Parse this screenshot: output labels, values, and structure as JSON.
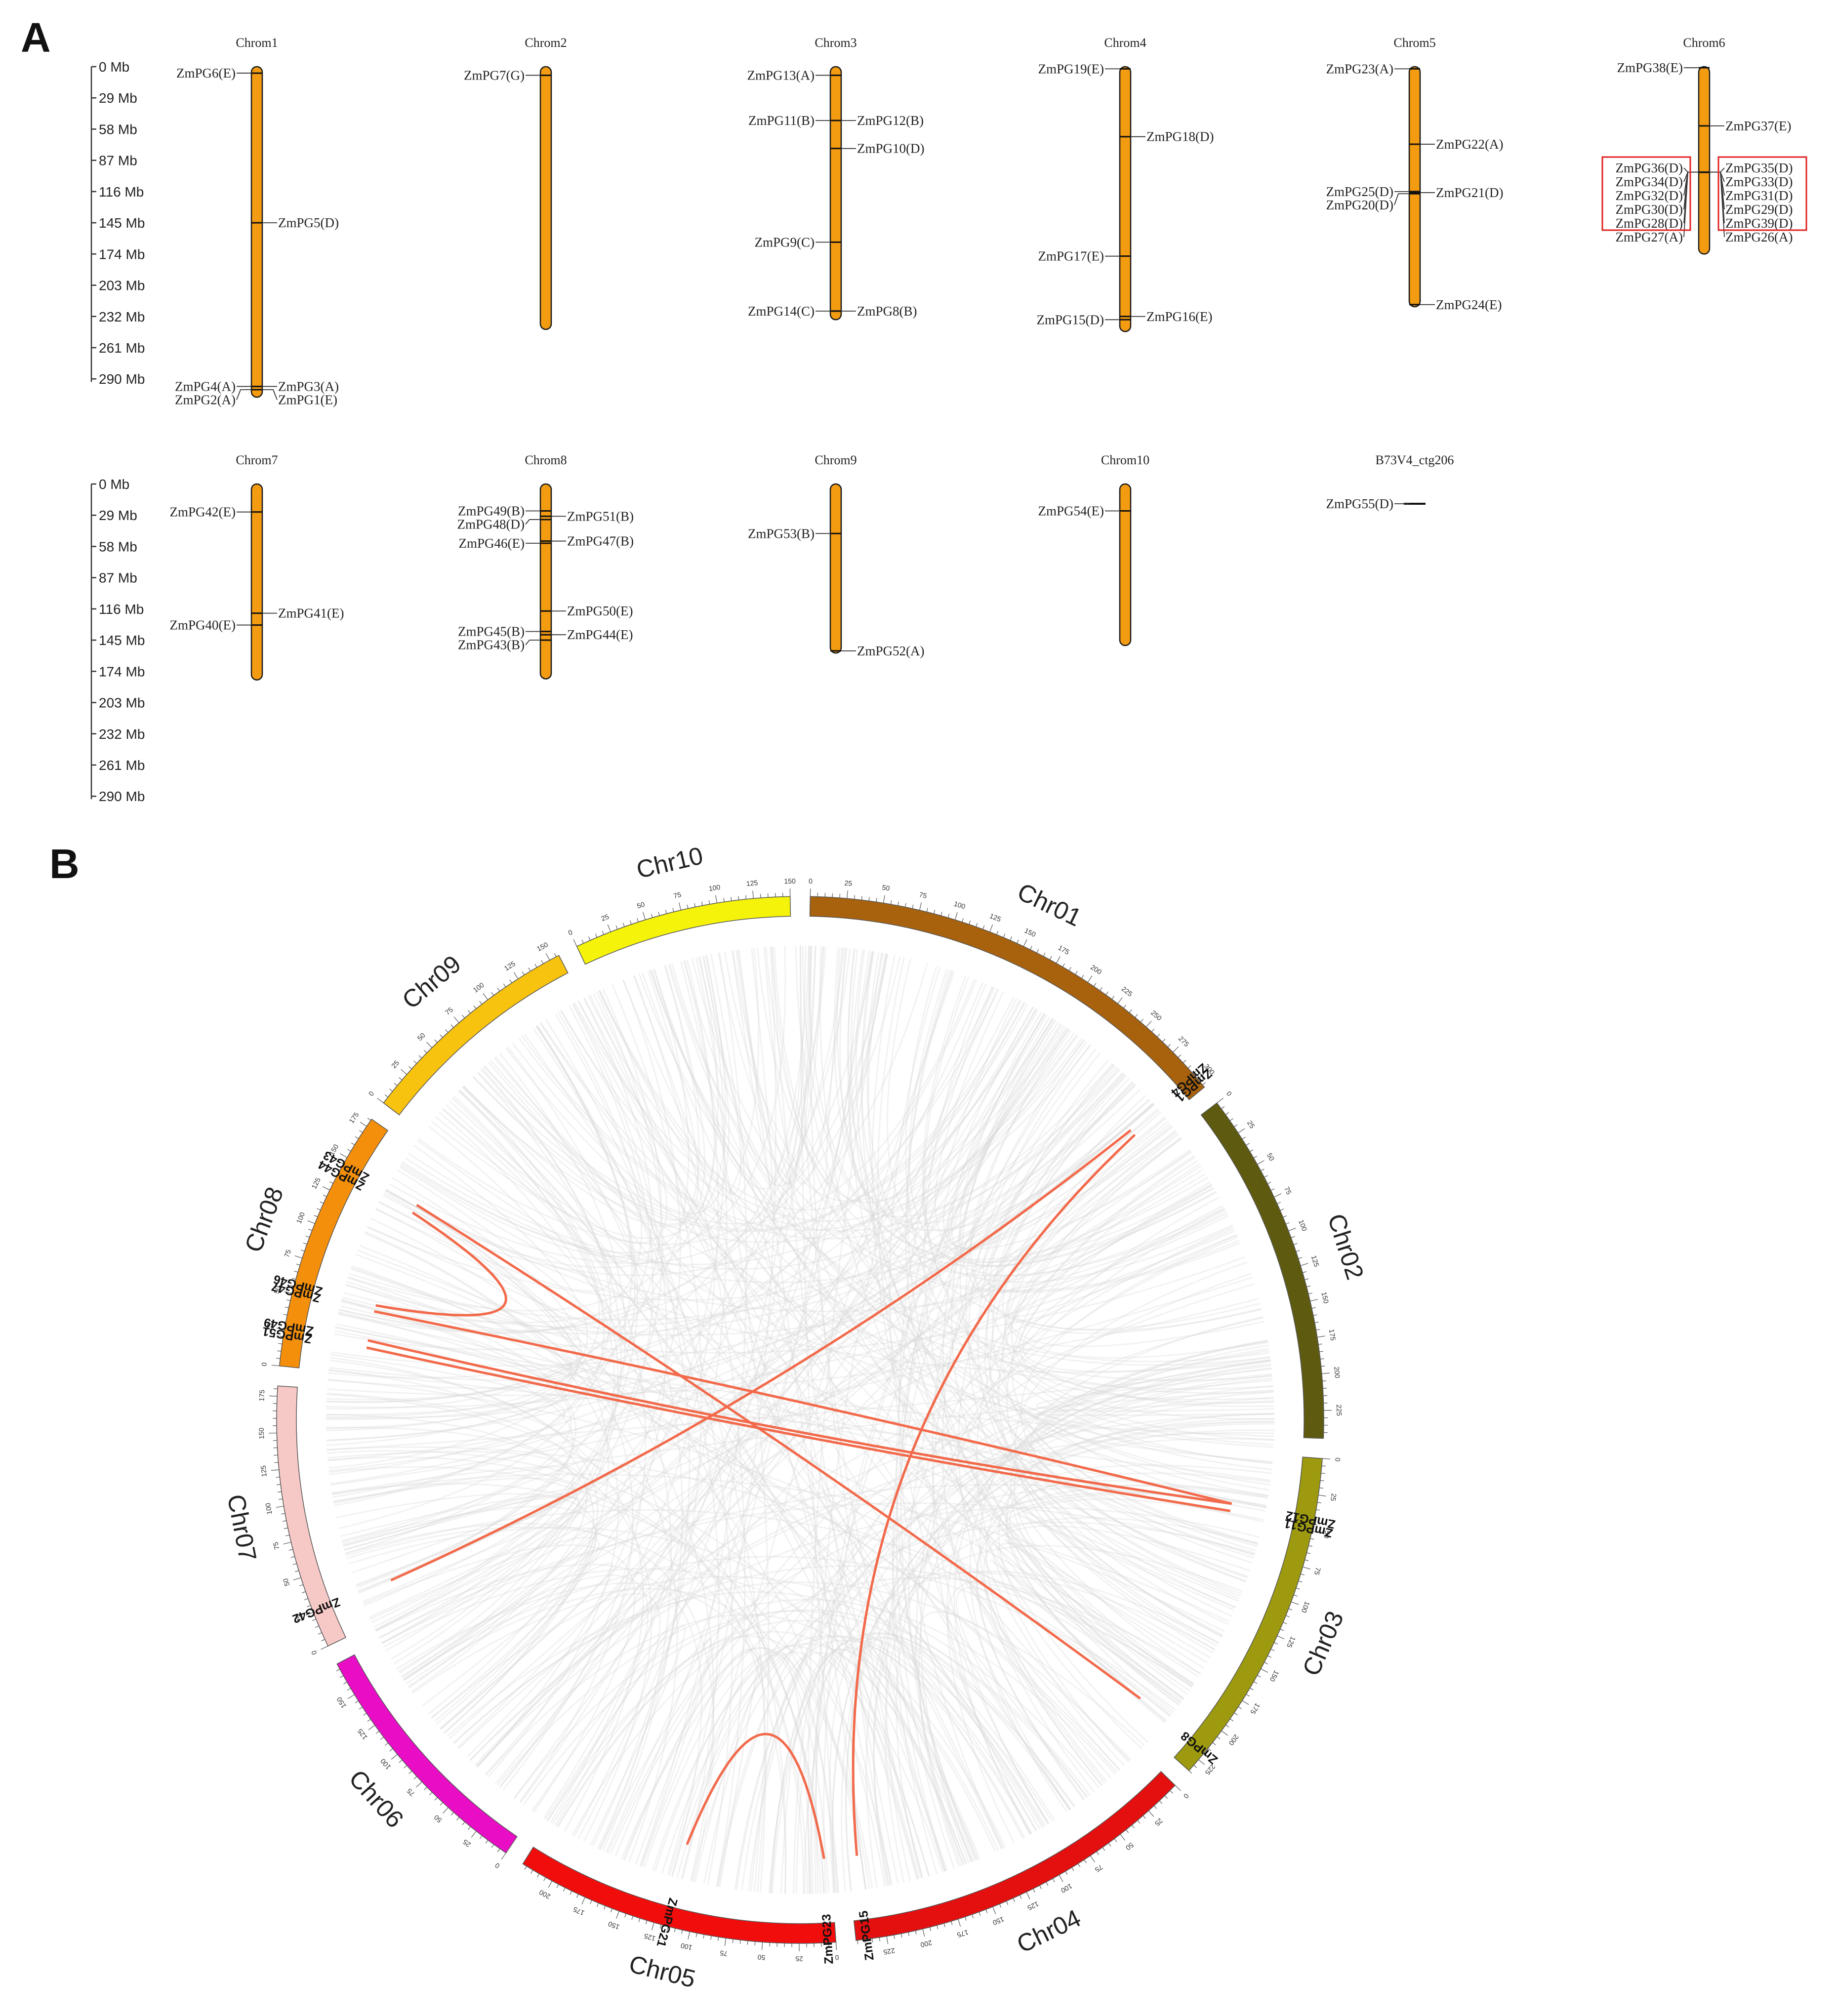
{
  "panelA": {
    "letter": "A",
    "scale_row1": [
      "0 Mb",
      "29 Mb",
      "58 Mb",
      "87 Mb",
      "116 Mb",
      "145 Mb",
      "174 Mb",
      "203 Mb",
      "232 Mb",
      "261 Mb",
      "290 Mb"
    ],
    "scale_row2": [
      "0 Mb",
      "29 Mb",
      "58 Mb",
      "87 Mb",
      "116 Mb",
      "145 Mb",
      "174 Mb",
      "203 Mb",
      "232 Mb",
      "261 Mb",
      "290 Mb"
    ],
    "chromosomes": [
      {
        "name": "Chrom1",
        "length": 307,
        "genes": [
          {
            "label": "ZmPG6(E)",
            "pos": 6,
            "side": "L"
          },
          {
            "label": "ZmPG5(D)",
            "pos": 145,
            "side": "R"
          },
          {
            "label": "ZmPG4(A)",
            "pos": 297,
            "side": "L"
          },
          {
            "label": "ZmPG2(A)",
            "pos": 300,
            "side": "L"
          },
          {
            "label": "ZmPG3(A)",
            "pos": 297,
            "side": "R"
          },
          {
            "label": "ZmPG1(E)",
            "pos": 300,
            "side": "R"
          }
        ]
      },
      {
        "name": "Chrom2",
        "length": 244,
        "genes": [
          {
            "label": "ZmPG7(G)",
            "pos": 8,
            "side": "L"
          }
        ]
      },
      {
        "name": "Chrom3",
        "length": 235,
        "genes": [
          {
            "label": "ZmPG13(A)",
            "pos": 8,
            "side": "L"
          },
          {
            "label": "ZmPG11(B)",
            "pos": 50,
            "side": "L"
          },
          {
            "label": "ZmPG12(B)",
            "pos": 50,
            "side": "R"
          },
          {
            "label": "ZmPG10(D)",
            "pos": 76,
            "side": "R"
          },
          {
            "label": "ZmPG9(C)",
            "pos": 163,
            "side": "L"
          },
          {
            "label": "ZmPG14(C)",
            "pos": 227,
            "side": "L"
          },
          {
            "label": "ZmPG8(B)",
            "pos": 227,
            "side": "R"
          }
        ]
      },
      {
        "name": "Chrom4",
        "length": 246,
        "genes": [
          {
            "label": "ZmPG19(E)",
            "pos": 2,
            "side": "L"
          },
          {
            "label": "ZmPG18(D)",
            "pos": 65,
            "side": "R"
          },
          {
            "label": "ZmPG17(E)",
            "pos": 176,
            "side": "L"
          },
          {
            "label": "ZmPG16(E)",
            "pos": 232,
            "side": "R"
          },
          {
            "label": "ZmPG15(D)",
            "pos": 235,
            "side": "L"
          }
        ]
      },
      {
        "name": "Chrom5",
        "length": 223,
        "genes": [
          {
            "label": "ZmPG23(A)",
            "pos": 2,
            "side": "L"
          },
          {
            "label": "ZmPG22(A)",
            "pos": 72,
            "side": "R"
          },
          {
            "label": "ZmPG25(D)",
            "pos": 116,
            "side": "L"
          },
          {
            "label": "ZmPG20(D)",
            "pos": 118,
            "side": "L"
          },
          {
            "label": "ZmPG21(D)",
            "pos": 117,
            "side": "R"
          },
          {
            "label": "ZmPG24(E)",
            "pos": 221,
            "side": "R"
          }
        ]
      },
      {
        "name": "Chrom6",
        "length": 174,
        "genes": [
          {
            "label": "ZmPG38(E)",
            "pos": 1,
            "side": "L"
          },
          {
            "label": "ZmPG37(E)",
            "pos": 55,
            "side": "R"
          },
          {
            "label": "ZmPG36(D)",
            "pos": 98,
            "side": "L"
          },
          {
            "label": "ZmPG34(D)",
            "pos": 98,
            "side": "L"
          },
          {
            "label": "ZmPG32(D)",
            "pos": 98,
            "side": "L"
          },
          {
            "label": "ZmPG30(D)",
            "pos": 98,
            "side": "L"
          },
          {
            "label": "ZmPG28(D)",
            "pos": 98,
            "side": "L"
          },
          {
            "label": "ZmPG27(A)",
            "pos": 98,
            "side": "L"
          },
          {
            "label": "ZmPG35(D)",
            "pos": 98,
            "side": "R"
          },
          {
            "label": "ZmPG33(D)",
            "pos": 98,
            "side": "R"
          },
          {
            "label": "ZmPG31(D)",
            "pos": 98,
            "side": "R"
          },
          {
            "label": "ZmPG29(D)",
            "pos": 98,
            "side": "R"
          },
          {
            "label": "ZmPG39(D)",
            "pos": 98,
            "side": "R"
          },
          {
            "label": "ZmPG26(A)",
            "pos": 98,
            "side": "R"
          }
        ]
      },
      {
        "name": "Chrom7",
        "length": 182,
        "genes": [
          {
            "label": "ZmPG42(E)",
            "pos": 26,
            "side": "L"
          },
          {
            "label": "ZmPG41(E)",
            "pos": 120,
            "side": "R"
          },
          {
            "label": "ZmPG40(E)",
            "pos": 131,
            "side": "L"
          }
        ]
      },
      {
        "name": "Chrom8",
        "length": 181,
        "genes": [
          {
            "label": "ZmPG49(B)",
            "pos": 25,
            "side": "L"
          },
          {
            "label": "ZmPG48(D)",
            "pos": 33,
            "side": "L"
          },
          {
            "label": "ZmPG51(B)",
            "pos": 30,
            "side": "R"
          },
          {
            "label": "ZmPG46(E)",
            "pos": 55,
            "side": "L"
          },
          {
            "label": "ZmPG47(B)",
            "pos": 53,
            "side": "R"
          },
          {
            "label": "ZmPG50(E)",
            "pos": 118,
            "side": "R"
          },
          {
            "label": "ZmPG45(B)",
            "pos": 137,
            "side": "L"
          },
          {
            "label": "ZmPG44(E)",
            "pos": 140,
            "side": "R"
          },
          {
            "label": "ZmPG43(B)",
            "pos": 145,
            "side": "L"
          }
        ]
      },
      {
        "name": "Chrom9",
        "length": 157,
        "genes": [
          {
            "label": "ZmPG53(B)",
            "pos": 46,
            "side": "L"
          },
          {
            "label": "ZmPG52(A)",
            "pos": 155,
            "side": "R"
          }
        ]
      },
      {
        "name": "Chrom10",
        "length": 150,
        "genes": [
          {
            "label": "ZmPG54(E)",
            "pos": 25,
            "side": "L"
          }
        ]
      },
      {
        "name": "B73V4_ctg206",
        "length": 0,
        "genes": [
          {
            "label": "ZmPG55(D)",
            "pos": 0,
            "side": "L"
          }
        ]
      }
    ]
  },
  "panelB": {
    "letter": "B",
    "chromosomes": [
      {
        "name": "Chr01",
        "length": 307,
        "color": "#A8620E",
        "ticks": [
          "0",
          "25",
          "50",
          "75",
          "100",
          "125",
          "150",
          "175",
          "200",
          "225",
          "250",
          "275",
          "300"
        ]
      },
      {
        "name": "Chr02",
        "length": 244,
        "color": "#5E5A10",
        "ticks": [
          "0",
          "25",
          "50",
          "75",
          "100",
          "125",
          "150",
          "175",
          "200",
          "225"
        ]
      },
      {
        "name": "Chr03",
        "length": 235,
        "color": "#9D9A10",
        "ticks": [
          "0",
          "25",
          "50",
          "75",
          "100",
          "125",
          "150",
          "175",
          "200",
          "225"
        ]
      },
      {
        "name": "Chr04",
        "length": 246,
        "color": "#E40F0F",
        "ticks": [
          "0",
          "25",
          "50",
          "75",
          "100",
          "125",
          "150",
          "175",
          "200",
          "225"
        ]
      },
      {
        "name": "Chr05",
        "length": 223,
        "color": "#F20D0D",
        "ticks": [
          "0",
          "25",
          "50",
          "75",
          "100",
          "125",
          "150",
          "175",
          "200"
        ]
      },
      {
        "name": "Chr06",
        "length": 174,
        "color": "#EA0DC6",
        "ticks": [
          "0",
          "25",
          "50",
          "75",
          "100",
          "125",
          "150"
        ]
      },
      {
        "name": "Chr07",
        "length": 182,
        "color": "#F7C9C6",
        "ticks": [
          "0",
          "25",
          "50",
          "75",
          "100",
          "125",
          "150",
          "175"
        ]
      },
      {
        "name": "Chr08",
        "length": 181,
        "color": "#F48F0B",
        "ticks": [
          "0",
          "25",
          "50",
          "75",
          "100",
          "125",
          "150",
          "175"
        ]
      },
      {
        "name": "Chr09",
        "length": 157,
        "color": "#F8C30E",
        "ticks": [
          "0",
          "25",
          "50",
          "75",
          "100",
          "125",
          "150"
        ]
      },
      {
        "name": "Chr10",
        "length": 150,
        "color": "#F6F30B",
        "ticks": [
          "0",
          "25",
          "50",
          "75",
          "100",
          "125",
          "150"
        ]
      }
    ],
    "genes": [
      {
        "label": "ZmPG4",
        "chr": "Chr01",
        "pos": 296
      },
      {
        "label": "ZmPG1",
        "chr": "Chr01",
        "pos": 301
      },
      {
        "label": "ZmPG12",
        "chr": "Chr03",
        "pos": 42
      },
      {
        "label": "ZmPG11",
        "chr": "Chr03",
        "pos": 48
      },
      {
        "label": "ZmPG8",
        "chr": "Chr03",
        "pos": 218
      },
      {
        "label": "ZmPG15",
        "chr": "Chr04",
        "pos": 238
      },
      {
        "label": "ZmPG23",
        "chr": "Chr05",
        "pos": 5
      },
      {
        "label": "ZmPG21",
        "chr": "Chr05",
        "pos": 117
      },
      {
        "label": "ZmPG42",
        "chr": "Chr07",
        "pos": 26
      },
      {
        "label": "ZmPG49",
        "chr": "Chr08",
        "pos": 28
      },
      {
        "label": "ZmPG51",
        "chr": "Chr08",
        "pos": 22
      },
      {
        "label": "ZmPG46",
        "chr": "Chr08",
        "pos": 57
      },
      {
        "label": "ZmPG47",
        "chr": "Chr08",
        "pos": 52
      },
      {
        "label": "ZmPG43",
        "chr": "Chr08",
        "pos": 145
      },
      {
        "label": "ZmPG44",
        "chr": "Chr08",
        "pos": 138
      }
    ],
    "links": [
      [
        "ZmPG4",
        "ZmPG42"
      ],
      [
        "ZmPG1",
        "ZmPG15"
      ],
      [
        "ZmPG12",
        "ZmPG49"
      ],
      [
        "ZmPG11",
        "ZmPG51"
      ],
      [
        "ZmPG8",
        "ZmPG43"
      ],
      [
        "ZmPG44",
        "ZmPG46"
      ],
      [
        "ZmPG47",
        "ZmPG12"
      ],
      [
        "ZmPG21",
        "ZmPG23"
      ]
    ],
    "link_color": "#F26A4B"
  }
}
